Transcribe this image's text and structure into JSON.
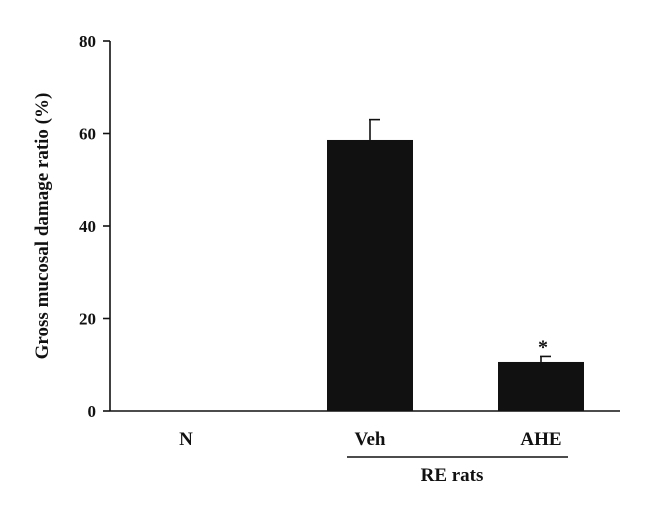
{
  "chart_data": {
    "type": "bar",
    "categories": [
      "N",
      "Veh",
      "AHE"
    ],
    "values": [
      0,
      58.6,
      10.6
    ],
    "error_bars": [
      0,
      4.4,
      1.2
    ],
    "significance": [
      "",
      "",
      "*"
    ],
    "ylabel": "Gross mucosal damage ratio (%)",
    "xlabel": "",
    "ylim": [
      0,
      80
    ],
    "yticks": [
      0,
      20,
      40,
      60,
      80
    ],
    "group_label": "RE rats",
    "group_categories": [
      "Veh",
      "AHE"
    ],
    "grid": false,
    "bar_color": "#111111"
  }
}
